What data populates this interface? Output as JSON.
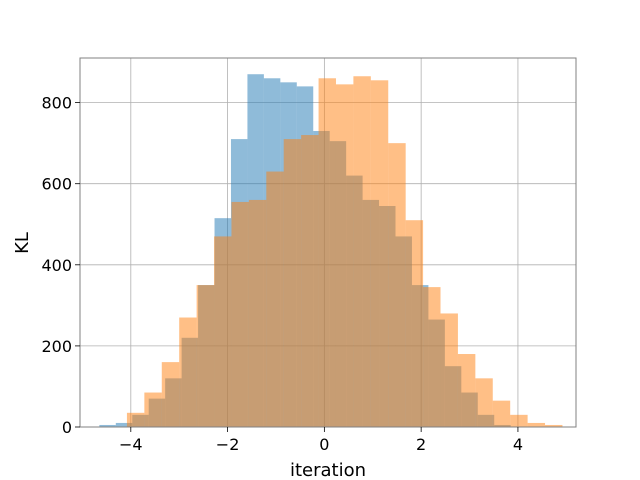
{
  "chart_data": {
    "type": "histogram",
    "title": "",
    "xlabel": "iteration",
    "ylabel": "KL",
    "xlim": [
      -5.05,
      5.2
    ],
    "ylim": [
      0,
      910
    ],
    "xticks": [
      -4,
      -2,
      0,
      2,
      4
    ],
    "yticks": [
      0,
      200,
      400,
      600,
      800
    ],
    "grid": true,
    "legend": "none",
    "series": [
      {
        "color": "#1f77b4",
        "alpha": 0.5,
        "bin_edges": [
          -4.65,
          -4.31,
          -3.97,
          -3.63,
          -3.29,
          -2.95,
          -2.61,
          -2.27,
          -1.93,
          -1.59,
          -1.25,
          -0.91,
          -0.57,
          -0.23,
          0.11,
          0.45,
          0.79,
          1.13,
          1.47,
          1.81,
          2.15,
          2.49,
          2.83,
          3.17,
          3.51,
          3.85,
          4.19
        ],
        "counts": [
          5,
          10,
          30,
          70,
          120,
          220,
          350,
          515,
          710,
          870,
          860,
          850,
          840,
          730,
          705,
          620,
          560,
          545,
          470,
          350,
          265,
          150,
          85,
          30,
          5,
          0
        ]
      },
      {
        "color": "#ff7f0e",
        "alpha": 0.5,
        "bin_edges": [
          -4.08,
          -3.72,
          -3.36,
          -3.0,
          -2.64,
          -2.28,
          -1.92,
          -1.56,
          -1.2,
          -0.84,
          -0.48,
          -0.12,
          0.24,
          0.6,
          0.96,
          1.32,
          1.68,
          2.04,
          2.4,
          2.76,
          3.12,
          3.48,
          3.84,
          4.2,
          4.56,
          4.92
        ],
        "counts": [
          35,
          85,
          160,
          270,
          350,
          470,
          555,
          560,
          630,
          710,
          720,
          860,
          845,
          865,
          855,
          700,
          510,
          345,
          280,
          180,
          120,
          65,
          30,
          10,
          5
        ]
      }
    ]
  }
}
